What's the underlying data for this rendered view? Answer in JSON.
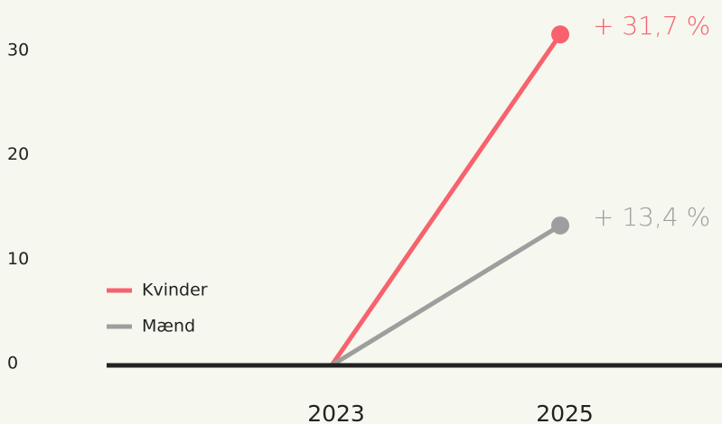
{
  "chart_data": {
    "type": "line",
    "categories": [
      "2023",
      "2025"
    ],
    "series": [
      {
        "name": "Kvinder",
        "color": "#f7626e",
        "values": [
          0,
          31.7
        ],
        "value_labels": [
          null,
          "+ 31,7 %"
        ]
      },
      {
        "name": "Mænd",
        "color": "#9e9e9e",
        "values": [
          0,
          13.4
        ],
        "value_labels": [
          null,
          "+ 13,4 %"
        ]
      }
    ],
    "ylim": [
      0,
      35
    ],
    "yticks": [
      0,
      10,
      20,
      30
    ],
    "grid": false
  }
}
